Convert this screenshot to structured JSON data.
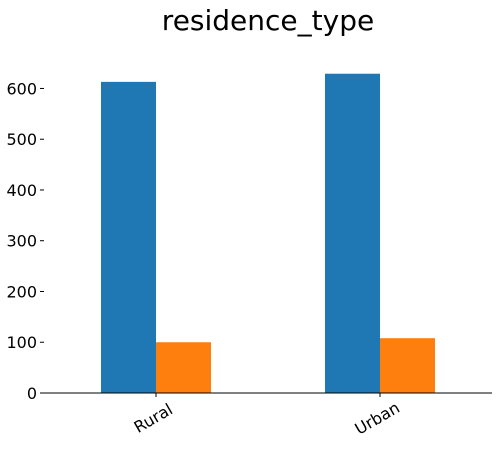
{
  "chart_data": {
    "type": "bar",
    "title": "residence_type",
    "categories": [
      "Rural",
      "Urban"
    ],
    "series": [
      {
        "color": "#1f77b4",
        "values": [
          613,
          629
        ]
      },
      {
        "color": "#ff7f0e",
        "values": [
          100,
          108
        ]
      }
    ],
    "xlabel": "",
    "ylabel": "",
    "ylim": [
      0,
      660
    ],
    "yticks": [
      0,
      100,
      200,
      300,
      400,
      500,
      600
    ],
    "grid": false,
    "legend": "none",
    "xtick_rotation_deg": 30
  }
}
